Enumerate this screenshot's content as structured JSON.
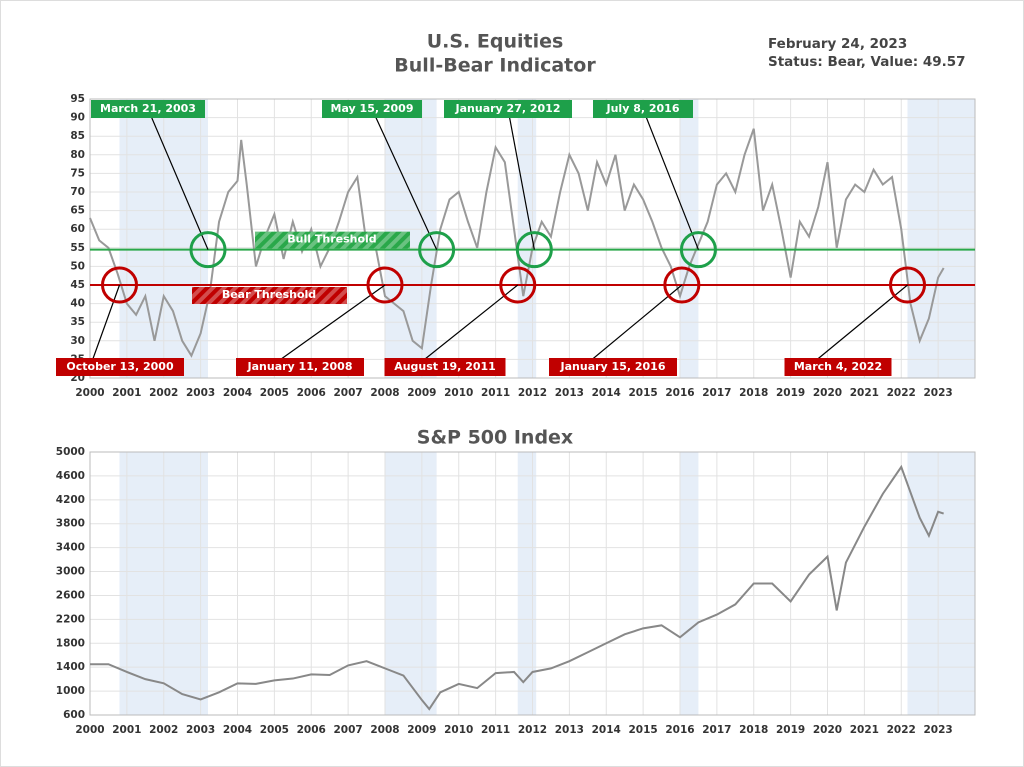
{
  "chart_data": [
    {
      "type": "line",
      "title": "U.S. Equities",
      "subtitle": "Bull-Bear Indicator",
      "date": "February 24, 2023",
      "status": "Status: Bear, Value: 49.57",
      "xlim": [
        2000,
        2024
      ],
      "xticks": [
        2000,
        2001,
        2002,
        2003,
        2004,
        2005,
        2006,
        2007,
        2008,
        2009,
        2010,
        2011,
        2012,
        2013,
        2014,
        2015,
        2016,
        2017,
        2018,
        2019,
        2020,
        2021,
        2022,
        2023
      ],
      "ylim": [
        20,
        95
      ],
      "yticks": [
        20,
        25,
        30,
        35,
        40,
        45,
        50,
        55,
        60,
        65,
        70,
        75,
        80,
        85,
        90,
        95
      ],
      "grid": true,
      "shaded_periods": [
        [
          2000.8,
          2003.2
        ],
        [
          2008.0,
          2009.4
        ],
        [
          2011.6,
          2012.1
        ],
        [
          2016.0,
          2016.5
        ],
        [
          2022.17,
          2024
        ]
      ],
      "thresholds": [
        {
          "name": "Bull Threshold",
          "value": 54.5,
          "color": "#2aa84a"
        },
        {
          "name": "Bear Threshold",
          "value": 45,
          "color": "#c00000"
        }
      ],
      "annotations": [
        {
          "label": "March 21, 2003",
          "x": 2003.2,
          "y": 54.5,
          "color": "#1ea04a"
        },
        {
          "label": "May 15, 2009",
          "x": 2009.4,
          "y": 54.5,
          "color": "#1ea04a"
        },
        {
          "label": "January 27, 2012",
          "x": 2012.05,
          "y": 54.5,
          "color": "#1ea04a"
        },
        {
          "label": "July 8, 2016",
          "x": 2016.5,
          "y": 54.5,
          "color": "#1ea04a"
        },
        {
          "label": "October 13, 2000",
          "x": 2000.8,
          "y": 45,
          "color": "#c00000"
        },
        {
          "label": "January 11, 2008",
          "x": 2008.0,
          "y": 45,
          "color": "#c00000"
        },
        {
          "label": "August 19, 2011",
          "x": 2011.6,
          "y": 45,
          "color": "#c00000"
        },
        {
          "label": "January 15, 2016",
          "x": 2016.05,
          "y": 45,
          "color": "#c00000"
        },
        {
          "label": "March 4, 2022",
          "x": 2022.17,
          "y": 45,
          "color": "#c00000"
        }
      ],
      "series": [
        {
          "name": "Bull-Bear Indicator",
          "color": "#999999",
          "x": [
            2000,
            2000.25,
            2000.5,
            2000.75,
            2001,
            2001.25,
            2001.5,
            2001.75,
            2002,
            2002.25,
            2002.5,
            2002.75,
            2003,
            2003.25,
            2003.5,
            2003.75,
            2004,
            2004.1,
            2004.25,
            2004.5,
            2004.75,
            2005,
            2005.25,
            2005.5,
            2005.75,
            2006,
            2006.25,
            2006.5,
            2006.75,
            2007,
            2007.25,
            2007.5,
            2007.75,
            2008,
            2008.25,
            2008.5,
            2008.75,
            2009,
            2009.25,
            2009.5,
            2009.75,
            2010,
            2010.25,
            2010.5,
            2010.75,
            2011,
            2011.25,
            2011.5,
            2011.75,
            2012,
            2012.25,
            2012.5,
            2012.75,
            2013,
            2013.25,
            2013.5,
            2013.75,
            2014,
            2014.25,
            2014.5,
            2014.75,
            2015,
            2015.25,
            2015.5,
            2015.75,
            2016,
            2016.25,
            2016.5,
            2016.75,
            2017,
            2017.25,
            2017.5,
            2017.75,
            2018,
            2018.25,
            2018.5,
            2018.75,
            2019,
            2019.25,
            2019.5,
            2019.75,
            2020,
            2020.25,
            2020.5,
            2020.75,
            2021,
            2021.25,
            2021.5,
            2021.75,
            2022,
            2022.25,
            2022.5,
            2022.75,
            2023,
            2023.15
          ],
          "values": [
            63,
            57,
            55,
            48,
            40,
            37,
            42,
            30,
            42,
            38,
            30,
            26,
            32,
            43,
            62,
            70,
            73,
            84,
            72,
            50,
            58,
            64,
            52,
            62,
            54,
            60,
            50,
            55,
            62,
            70,
            74,
            56,
            55,
            42,
            40,
            38,
            30,
            28,
            45,
            60,
            68,
            70,
            62,
            55,
            70,
            82,
            78,
            60,
            42,
            55,
            62,
            58,
            70,
            80,
            75,
            65,
            78,
            72,
            80,
            65,
            72,
            68,
            62,
            55,
            50,
            42,
            50,
            56,
            62,
            72,
            75,
            70,
            80,
            87,
            65,
            72,
            60,
            47,
            62,
            58,
            66,
            78,
            55,
            68,
            72,
            70,
            76,
            72,
            74,
            60,
            40,
            30,
            36,
            47,
            49.57
          ]
        }
      ]
    },
    {
      "type": "line",
      "title": "S&P 500 Index",
      "xlim": [
        2000,
        2024
      ],
      "xticks": [
        2000,
        2001,
        2002,
        2003,
        2004,
        2005,
        2006,
        2007,
        2008,
        2009,
        2010,
        2011,
        2012,
        2013,
        2014,
        2015,
        2016,
        2017,
        2018,
        2019,
        2020,
        2021,
        2022,
        2023
      ],
      "ylim": [
        600,
        5000
      ],
      "yticks": [
        600,
        1000,
        1400,
        1800,
        2200,
        2600,
        3000,
        3400,
        3800,
        4200,
        4600,
        5000
      ],
      "grid": true,
      "shaded_periods": [
        [
          2000.8,
          2003.2
        ],
        [
          2008.0,
          2009.4
        ],
        [
          2011.6,
          2012.1
        ],
        [
          2016.0,
          2016.5
        ],
        [
          2022.17,
          2024
        ]
      ],
      "series": [
        {
          "name": "S&P 500 Index",
          "color": "#888888",
          "x": [
            2000,
            2000.5,
            2001,
            2001.5,
            2002,
            2002.5,
            2003,
            2003.5,
            2004,
            2004.5,
            2005,
            2005.5,
            2006,
            2006.5,
            2007,
            2007.5,
            2008,
            2008.5,
            2009,
            2009.2,
            2009.5,
            2010,
            2010.5,
            2011,
            2011.5,
            2011.75,
            2012,
            2012.5,
            2013,
            2013.5,
            2014,
            2014.5,
            2015,
            2015.5,
            2016,
            2016.5,
            2017,
            2017.5,
            2018,
            2018.5,
            2019,
            2019.5,
            2020,
            2020.25,
            2020.5,
            2021,
            2021.5,
            2022,
            2022.5,
            2022.75,
            2023,
            2023.15
          ],
          "values": [
            1450,
            1450,
            1320,
            1200,
            1130,
            950,
            860,
            980,
            1130,
            1120,
            1180,
            1210,
            1280,
            1270,
            1430,
            1500,
            1380,
            1260,
            850,
            700,
            980,
            1120,
            1050,
            1300,
            1320,
            1150,
            1320,
            1380,
            1500,
            1650,
            1800,
            1950,
            2050,
            2100,
            1900,
            2150,
            2280,
            2450,
            2800,
            2800,
            2500,
            2950,
            3250,
            2350,
            3150,
            3750,
            4300,
            4750,
            3900,
            3600,
            4000,
            3970
          ]
        }
      ]
    }
  ]
}
